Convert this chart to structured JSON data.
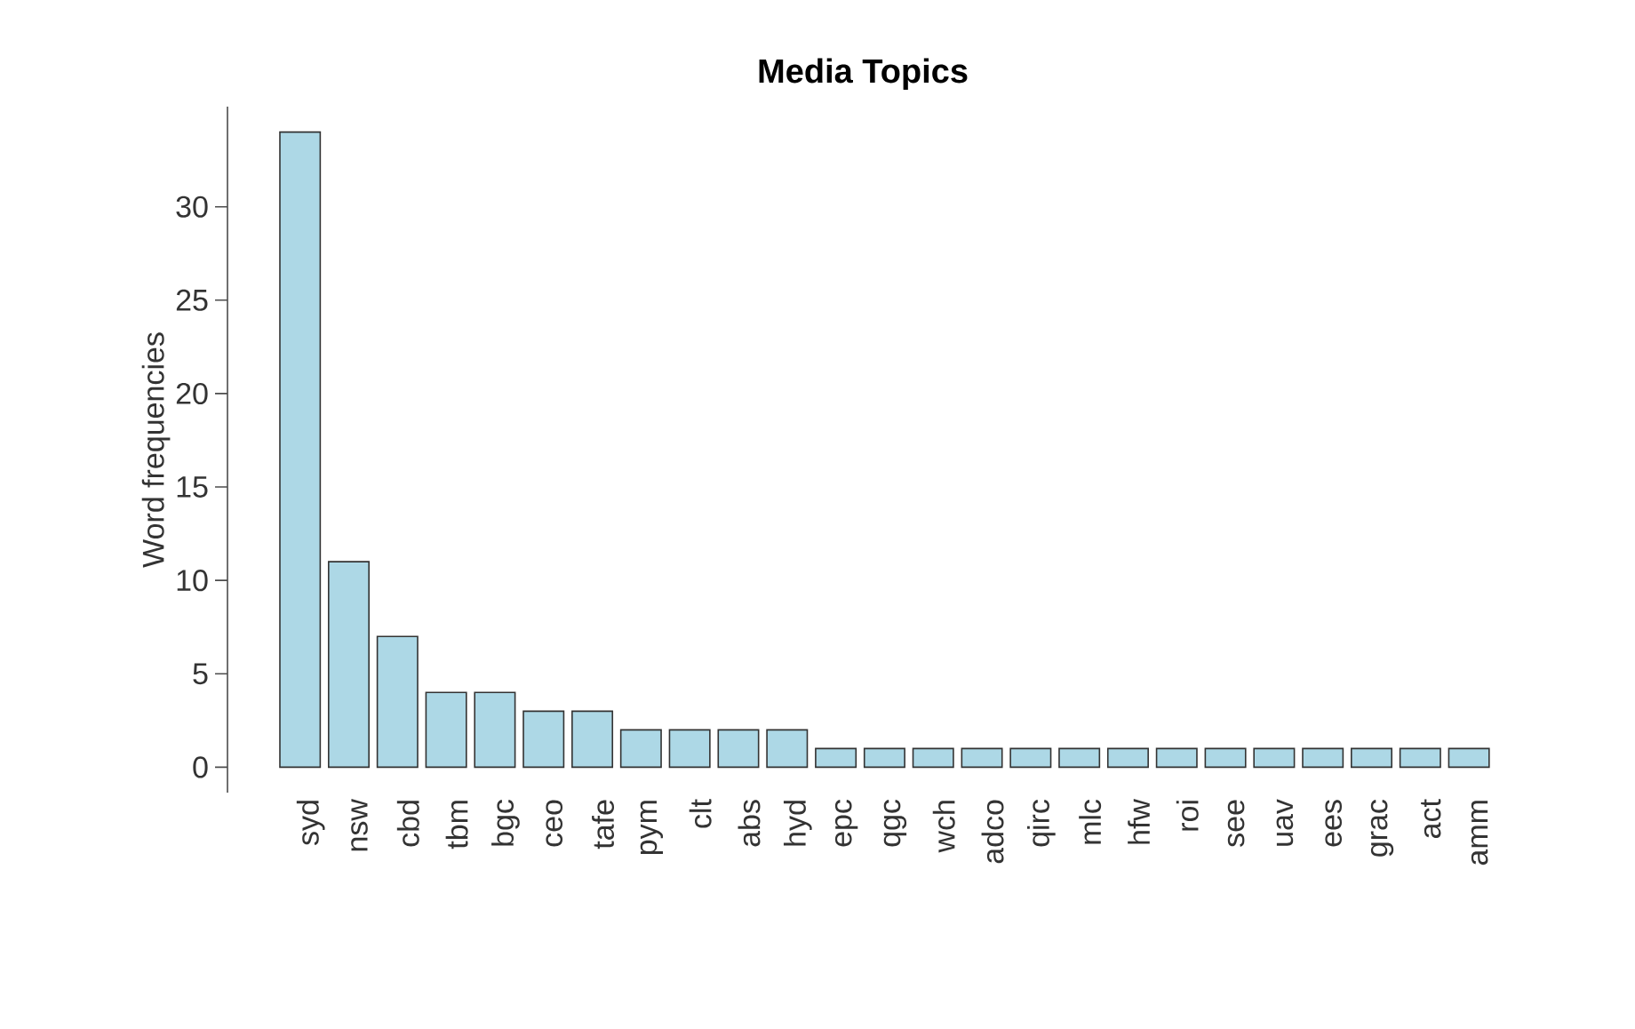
{
  "chart_data": {
    "type": "bar",
    "title": "Media Topics",
    "ylabel": "Word frequencies",
    "categories": [
      "syd",
      "nsw",
      "cbd",
      "tbm",
      "bgc",
      "ceo",
      "tafe",
      "pym",
      "clt",
      "abs",
      "hyd",
      "epc",
      "qgc",
      "wch",
      "adco",
      "qirc",
      "mlc",
      "hfw",
      "roi",
      "see",
      "uav",
      "ees",
      "grac",
      "act",
      "amm"
    ],
    "values": [
      34,
      11,
      7,
      4,
      4,
      3,
      3,
      2,
      2,
      2,
      2,
      1,
      1,
      1,
      1,
      1,
      1,
      1,
      1,
      1,
      1,
      1,
      1,
      1,
      1
    ],
    "color": "#add8e6",
    "ylim": [
      -1.36,
      35.36
    ],
    "yticks": [
      0,
      5,
      10,
      15,
      20,
      25,
      30
    ],
    "grid": false
  }
}
